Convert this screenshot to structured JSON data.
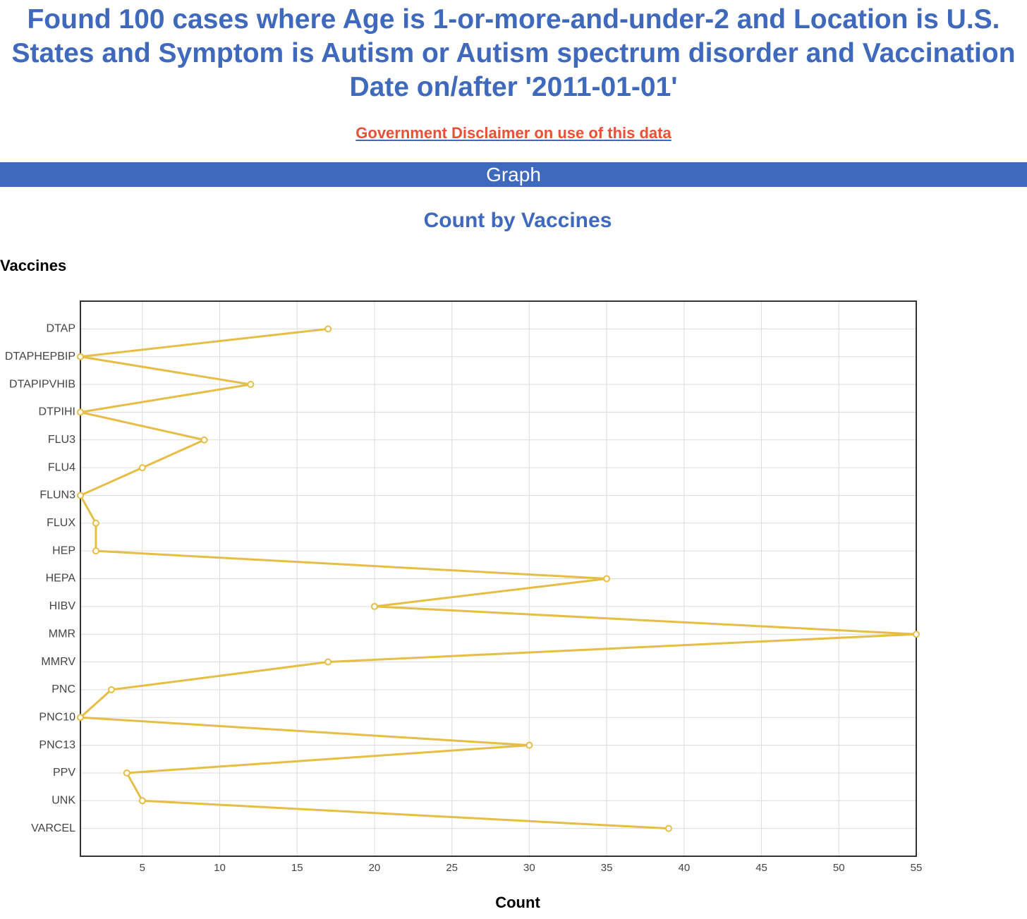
{
  "header": {
    "title": "Found 100 cases where Age is 1-or-more-and-under-2 and Location is U.S. States and Symptom is Autism or Autism spectrum disorder and Vaccination Date on/after '2011-01-01'",
    "disclaimer": "Government Disclaimer on use of this data",
    "section": "Graph"
  },
  "chart_data": {
    "type": "line",
    "title": "Count by Vaccines",
    "y_label": "Vaccines",
    "x_label": "Count",
    "categories": [
      "DTAP",
      "DTAPHEPBIP",
      "DTAPIPVHIB",
      "DTPIHI",
      "FLU3",
      "FLU4",
      "FLUN3",
      "FLUX",
      "HEP",
      "HEPA",
      "HIBV",
      "MMR",
      "MMRV",
      "PNC",
      "PNC10",
      "PNC13",
      "PPV",
      "UNK",
      "VARCEL"
    ],
    "values": [
      17,
      1,
      12,
      1,
      9,
      5,
      1,
      2,
      2,
      35,
      20,
      55,
      17,
      3,
      1,
      30,
      4,
      5,
      39
    ],
    "color": "#e6bd45",
    "xlim": [
      1,
      55
    ],
    "xticks": [
      5,
      10,
      15,
      20,
      25,
      30,
      35,
      40,
      45,
      50,
      55
    ],
    "grid": true
  }
}
